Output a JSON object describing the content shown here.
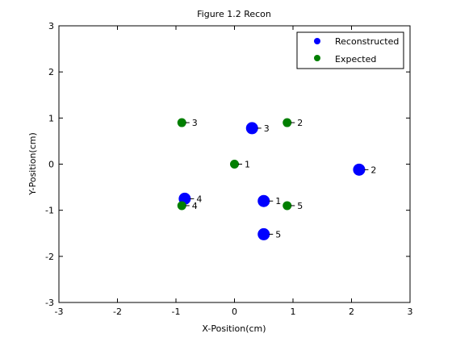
{
  "chart_data": {
    "type": "scatter",
    "title": "Figure 1.2 Recon",
    "xlabel": "X-Position(cm)",
    "ylabel": "Y-Position(cm)",
    "xlim": [
      -3,
      3
    ],
    "ylim": [
      -3,
      3
    ],
    "xticks": [
      "-3",
      "-2",
      "-1",
      "0",
      "1",
      "2",
      "3"
    ],
    "yticks": [
      "-3",
      "-2",
      "-1",
      "0",
      "1",
      "2",
      "3"
    ],
    "grid": false,
    "legend_position": "top-right",
    "series": [
      {
        "name": "Reconstructed",
        "color": "#0000ff",
        "marker_size": "large",
        "points": [
          {
            "x": 0.5,
            "y": -0.8,
            "label": "1"
          },
          {
            "x": 2.13,
            "y": -0.12,
            "label": "2"
          },
          {
            "x": 0.3,
            "y": 0.78,
            "label": "3"
          },
          {
            "x": -0.85,
            "y": -0.75,
            "label": "4"
          },
          {
            "x": 0.5,
            "y": -1.52,
            "label": "5"
          }
        ]
      },
      {
        "name": "Expected",
        "color": "#007f00",
        "marker_size": "medium",
        "points": [
          {
            "x": 0.0,
            "y": 0.0,
            "label": "1"
          },
          {
            "x": 0.9,
            "y": 0.9,
            "label": "2"
          },
          {
            "x": -0.9,
            "y": 0.9,
            "label": "3"
          },
          {
            "x": -0.9,
            "y": -0.9,
            "label": "4"
          },
          {
            "x": 0.9,
            "y": -0.9,
            "label": "5"
          }
        ]
      }
    ]
  }
}
